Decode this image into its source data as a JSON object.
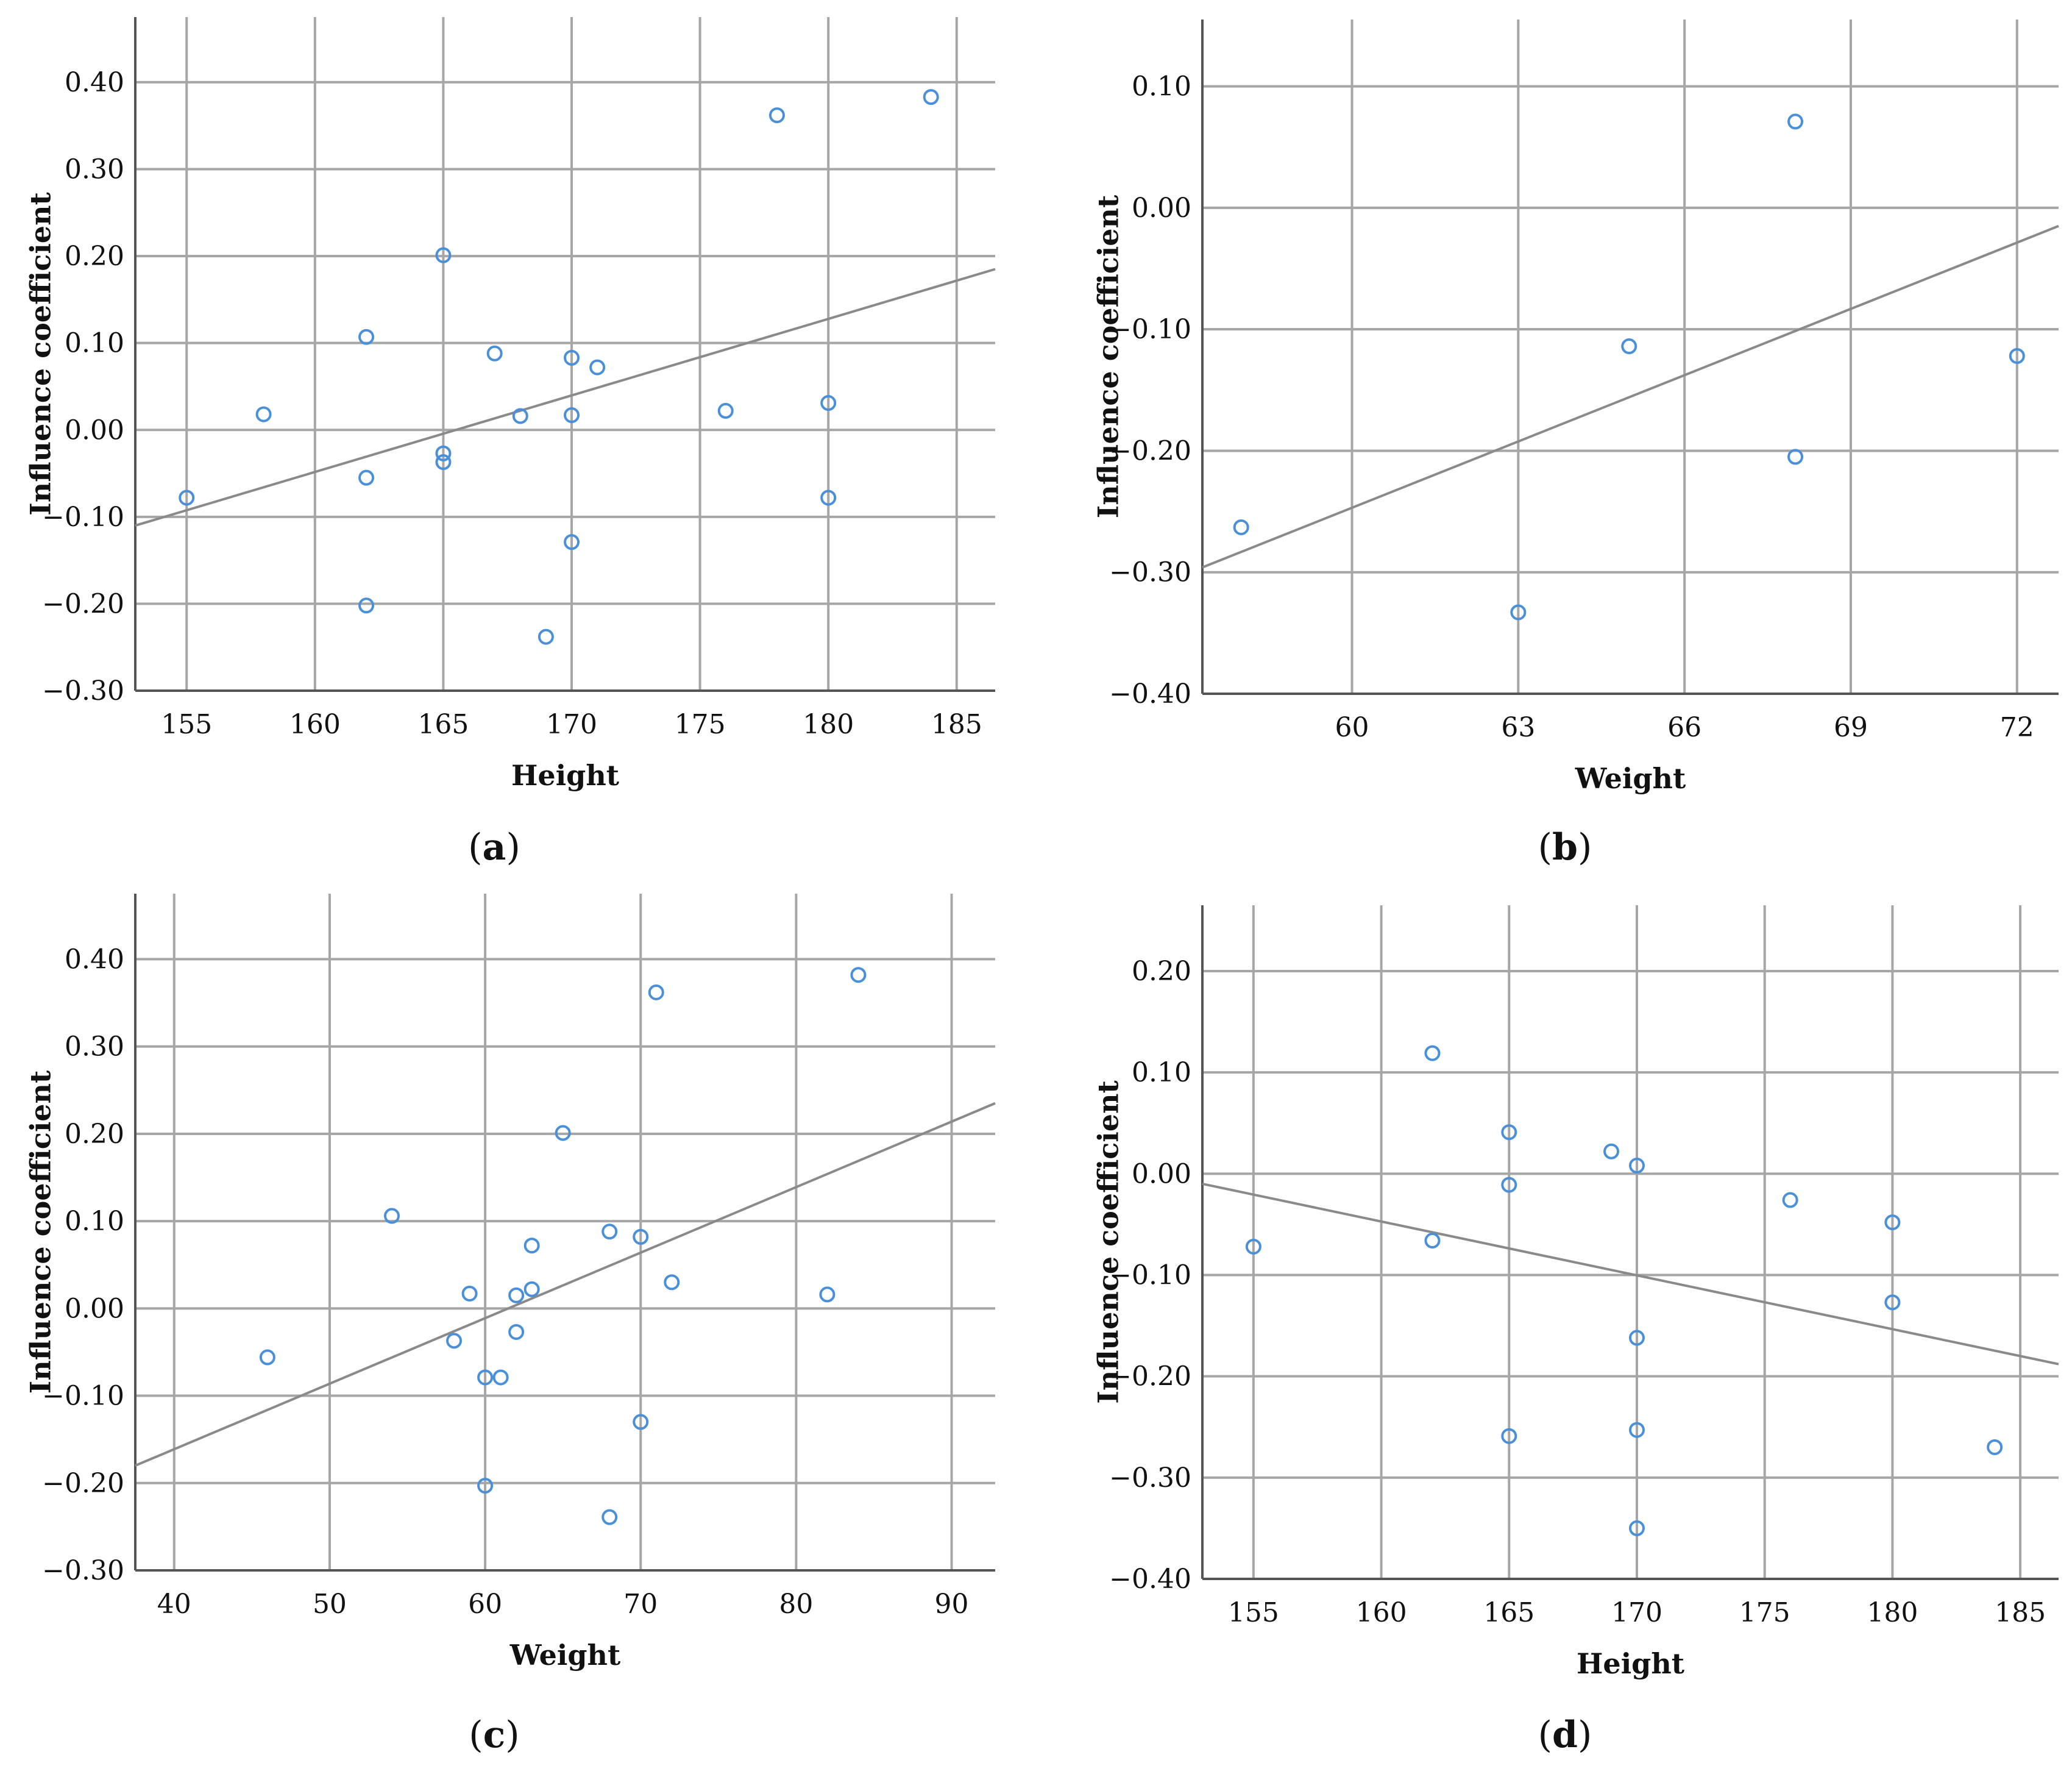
{
  "figure": {
    "panels": [
      {
        "id": "a",
        "caption_open": "(",
        "caption_letter": "a",
        "caption_close": ")"
      },
      {
        "id": "b",
        "caption_open": "(",
        "caption_letter": "b",
        "caption_close": ")"
      },
      {
        "id": "c",
        "caption_open": "(",
        "caption_letter": "c",
        "caption_close": ")"
      },
      {
        "id": "d",
        "caption_open": "(",
        "caption_letter": "d",
        "caption_close": ")"
      }
    ]
  },
  "colors": {
    "point": "#4a90d9",
    "fit_line": "#8a8a8a",
    "grid": "#a6a6a6"
  },
  "chart_data": [
    {
      "type": "scatter",
      "panel": "a",
      "title": "",
      "xlabel": "Height",
      "ylabel": "Influence coefficient",
      "xlim": [
        153,
        186.5
      ],
      "ylim": [
        -0.3,
        0.475
      ],
      "xticks": [
        155,
        160,
        165,
        170,
        175,
        180,
        185
      ],
      "yticks": [
        -0.3,
        -0.2,
        -0.1,
        0.0,
        0.1,
        0.2,
        0.3,
        0.4
      ],
      "xtick_labels": [
        "155",
        "160",
        "165",
        "170",
        "175",
        "180",
        "185"
      ],
      "ytick_labels": [
        "−0.30",
        "−0.20",
        "−0.10",
        "0.00",
        "0.10",
        "0.20",
        "0.30",
        "0.40"
      ],
      "grid": true,
      "fit_line": {
        "x": [
          153,
          186.5
        ],
        "y": [
          -0.11,
          0.185
        ]
      },
      "points": {
        "x": [
          155,
          158,
          162,
          162,
          162,
          165,
          165,
          165,
          167,
          168,
          169,
          170,
          170,
          170,
          171,
          176,
          178,
          180,
          180,
          184
        ],
        "y": [
          -0.078,
          0.018,
          0.107,
          -0.055,
          -0.202,
          0.201,
          -0.027,
          -0.037,
          0.088,
          0.016,
          -0.238,
          0.083,
          0.017,
          -0.129,
          0.072,
          0.022,
          0.362,
          0.031,
          -0.078,
          0.383
        ]
      }
    },
    {
      "type": "scatter",
      "panel": "b",
      "title": "",
      "xlabel": "Weight",
      "ylabel": "Influence coefficient",
      "xlim": [
        57.3,
        72.75
      ],
      "ylim": [
        -0.4,
        0.155
      ],
      "xticks": [
        60,
        63,
        66,
        69,
        72
      ],
      "yticks": [
        -0.4,
        -0.3,
        -0.2,
        -0.1,
        0.0,
        0.1
      ],
      "xtick_labels": [
        "60",
        "63",
        "66",
        "69",
        "72"
      ],
      "ytick_labels": [
        "−0.40",
        "−0.30",
        "−0.20",
        "−0.10",
        "0.00",
        "0.10"
      ],
      "grid": true,
      "fit_line": {
        "x": [
          57.3,
          72.75
        ],
        "y": [
          -0.296,
          -0.015
        ]
      },
      "points": {
        "x": [
          58,
          63,
          65,
          68,
          68,
          72
        ],
        "y": [
          -0.263,
          -0.333,
          -0.114,
          0.071,
          -0.205,
          -0.122
        ]
      }
    },
    {
      "type": "scatter",
      "panel": "c",
      "title": "",
      "xlabel": "Weight",
      "ylabel": "Influence coefficient",
      "xlim": [
        37.5,
        92.8
      ],
      "ylim": [
        -0.3,
        0.475
      ],
      "xticks": [
        40,
        50,
        60,
        70,
        80,
        90
      ],
      "yticks": [
        -0.3,
        -0.2,
        -0.1,
        0.0,
        0.1,
        0.2,
        0.3,
        0.4
      ],
      "xtick_labels": [
        "40",
        "50",
        "60",
        "70",
        "80",
        "90"
      ],
      "ytick_labels": [
        "−0.30",
        "−0.20",
        "−0.10",
        "0.00",
        "0.10",
        "0.20",
        "0.30",
        "0.40"
      ],
      "grid": true,
      "fit_line": {
        "x": [
          37.5,
          92.8
        ],
        "y": [
          -0.18,
          0.235
        ]
      },
      "points": {
        "x": [
          46,
          54,
          58,
          59,
          60,
          60,
          61,
          62,
          62,
          63,
          63,
          65,
          68,
          68,
          70,
          70,
          71,
          72,
          82,
          84
        ],
        "y": [
          -0.056,
          0.106,
          -0.037,
          0.017,
          -0.079,
          -0.203,
          -0.079,
          0.015,
          -0.027,
          0.072,
          0.022,
          0.201,
          0.088,
          -0.239,
          0.082,
          -0.13,
          0.362,
          0.03,
          0.016,
          0.382
        ]
      }
    },
    {
      "type": "scatter",
      "panel": "d",
      "title": "",
      "xlabel": "Height",
      "ylabel": "Influence coefficient",
      "xlim": [
        153,
        186.5
      ],
      "ylim": [
        -0.4,
        0.265
      ],
      "xticks": [
        155,
        160,
        165,
        170,
        175,
        180,
        185
      ],
      "yticks": [
        -0.4,
        -0.3,
        -0.2,
        -0.1,
        0.0,
        0.1,
        0.2
      ],
      "xtick_labels": [
        "155",
        "160",
        "165",
        "170",
        "175",
        "180",
        "185"
      ],
      "ytick_labels": [
        "−0.40",
        "−0.30",
        "−0.20",
        "−0.10",
        "0.00",
        "0.10",
        "0.20"
      ],
      "grid": true,
      "fit_line": {
        "x": [
          153,
          186.5
        ],
        "y": [
          -0.01,
          -0.188
        ]
      },
      "points": {
        "x": [
          155,
          162,
          162,
          165,
          165,
          165,
          169,
          170,
          170,
          170,
          170,
          176,
          180,
          180,
          184
        ],
        "y": [
          -0.072,
          0.119,
          -0.066,
          0.041,
          -0.011,
          -0.259,
          0.022,
          0.008,
          -0.162,
          -0.253,
          -0.35,
          -0.026,
          -0.048,
          -0.127,
          -0.27
        ]
      }
    }
  ]
}
